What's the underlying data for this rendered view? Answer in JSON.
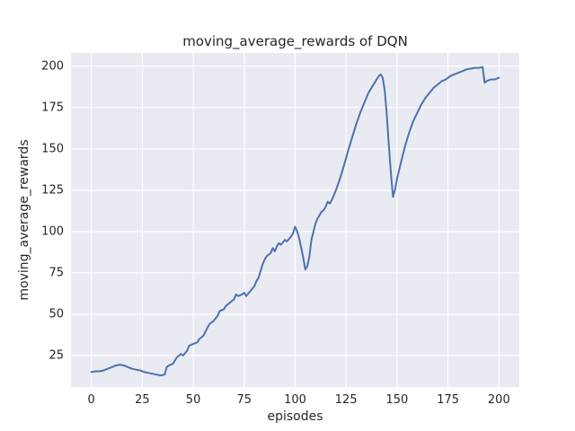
{
  "figure": {
    "title": "moving_average_rewards of DQN",
    "xlabel": "episodes",
    "ylabel": "moving_average_rewards"
  },
  "chart_data": {
    "type": "line",
    "title": "moving_average_rewards of DQN",
    "xlabel": "episodes",
    "ylabel": "moving_average_rewards",
    "xlim": [
      -10,
      210
    ],
    "ylim": [
      6,
      208
    ],
    "xticks": [
      0,
      25,
      50,
      75,
      100,
      125,
      150,
      175,
      200
    ],
    "yticks": [
      25,
      50,
      75,
      100,
      125,
      150,
      175,
      200
    ],
    "grid": true,
    "plot_background": "#eaeaf2",
    "grid_color": "#ffffff",
    "line_color": "#4c72b0",
    "text_color": "#262626",
    "series": [
      {
        "name": "moving_average_rewards",
        "x": [
          0,
          2,
          4,
          6,
          8,
          10,
          12,
          14,
          16,
          18,
          20,
          22,
          24,
          26,
          28,
          30,
          32,
          34,
          36,
          37,
          38,
          40,
          42,
          44,
          45,
          47,
          48,
          50,
          52,
          53,
          55,
          57,
          58,
          60,
          62,
          63,
          65,
          66,
          68,
          70,
          71,
          72,
          74,
          75,
          76,
          78,
          80,
          81,
          82,
          84,
          85,
          86,
          88,
          89,
          90,
          91,
          92,
          93,
          95,
          96,
          98,
          99,
          100,
          101,
          102,
          103,
          104,
          105,
          106,
          107,
          108,
          109,
          110,
          111,
          112,
          113,
          114,
          115,
          116,
          117,
          118,
          119,
          120,
          122,
          124,
          126,
          128,
          130,
          132,
          134,
          136,
          138,
          140,
          141,
          142,
          143,
          144,
          145,
          146,
          147,
          148,
          149,
          150,
          152,
          154,
          156,
          158,
          160,
          162,
          164,
          166,
          168,
          170,
          172,
          174,
          176,
          178,
          180,
          182,
          184,
          186,
          188,
          190,
          192,
          193,
          194,
          196,
          198,
          200
        ],
        "y": [
          15,
          15.5,
          15.5,
          16,
          17,
          18,
          19,
          19.5,
          19,
          18,
          17,
          16.5,
          16,
          15,
          14.5,
          14,
          13.5,
          13,
          13.5,
          18,
          19,
          20,
          24,
          26,
          25,
          28,
          31,
          32,
          33,
          35,
          37,
          42,
          44,
          46,
          49,
          52,
          53,
          55,
          57,
          59,
          62,
          61,
          62,
          63,
          61,
          64,
          67,
          70,
          72,
          80,
          83,
          85,
          87,
          90,
          88,
          91,
          93,
          92,
          95,
          94,
          97,
          99,
          103,
          100,
          96,
          90,
          84,
          77,
          79,
          85,
          95,
          100,
          105,
          108,
          110,
          112,
          113,
          115,
          118,
          117,
          119,
          122,
          125,
          132,
          140,
          149,
          157,
          165,
          172,
          178,
          184,
          188,
          192,
          194,
          195,
          193,
          185,
          170,
          152,
          135,
          121,
          125,
          132,
          142,
          152,
          160,
          167,
          172,
          177,
          181,
          184,
          187,
          189,
          191,
          192,
          194,
          195,
          196,
          197,
          198,
          198.5,
          199,
          199,
          199.5,
          190,
          191,
          192,
          192,
          193
        ]
      }
    ]
  }
}
